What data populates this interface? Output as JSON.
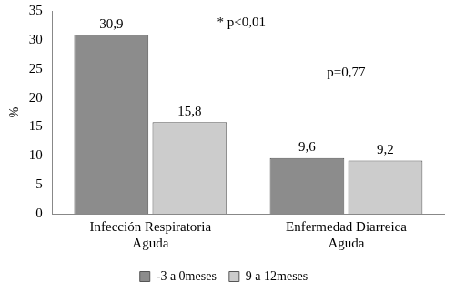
{
  "chart_data": {
    "type": "bar",
    "y_label": "%",
    "categories": [
      [
        "Infección Respiratoria",
        "Aguda"
      ],
      [
        "Enfermedad Diarreica",
        "Aguda"
      ]
    ],
    "series": [
      {
        "name": "-3 a 0meses",
        "color": "#8c8c8c",
        "values": [
          30.9,
          9.6
        ],
        "value_labels": [
          "30,9",
          "9,6"
        ]
      },
      {
        "name": "9 a 12meses",
        "color": "#cccccc",
        "values": [
          15.8,
          9.2
        ],
        "value_labels": [
          "15,8",
          "9,2"
        ]
      }
    ],
    "annotations": [
      "* p<0,01",
      "p=0,77"
    ],
    "ylim": [
      0,
      35
    ],
    "yticks": [
      0,
      5,
      10,
      15,
      20,
      25,
      30,
      35
    ],
    "grid": false,
    "legend": "bottom",
    "data_labels": true
  }
}
